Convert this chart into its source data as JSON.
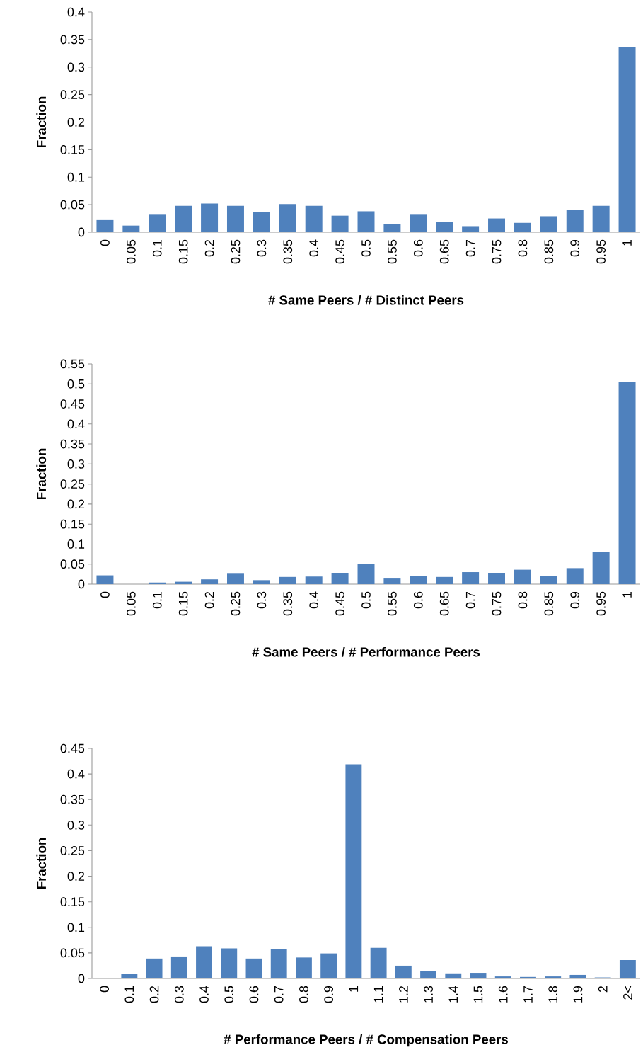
{
  "chart_data": [
    {
      "type": "bar",
      "xlabel": "# Same Peers / # Distinct Peers",
      "ylabel": "Fraction",
      "color": "#4f81bd",
      "categories": [
        "0",
        "0.05",
        "0.1",
        "0.15",
        "0.2",
        "0.25",
        "0.3",
        "0.35",
        "0.4",
        "0.45",
        "0.5",
        "0.55",
        "0.6",
        "0.65",
        "0.7",
        "0.75",
        "0.8",
        "0.85",
        "0.9",
        "0.95",
        "1"
      ],
      "values": [
        0.022,
        0.012,
        0.033,
        0.048,
        0.052,
        0.048,
        0.037,
        0.051,
        0.048,
        0.03,
        0.038,
        0.015,
        0.033,
        0.018,
        0.011,
        0.025,
        0.017,
        0.029,
        0.04,
        0.048,
        0.336
      ],
      "ylim": [
        0,
        0.4
      ],
      "yticks": [
        0,
        0.05,
        0.1,
        0.15,
        0.2,
        0.25,
        0.3,
        0.35,
        0.4
      ]
    },
    {
      "type": "bar",
      "xlabel": "# Same Peers / # Performance Peers",
      "ylabel": "Fraction",
      "color": "#4f81bd",
      "categories": [
        "0",
        "0.05",
        "0.1",
        "0.15",
        "0.2",
        "0.25",
        "0.3",
        "0.35",
        "0.4",
        "0.45",
        "0.5",
        "0.55",
        "0.6",
        "0.65",
        "0.7",
        "0.75",
        "0.8",
        "0.85",
        "0.9",
        "0.95",
        "1"
      ],
      "values": [
        0.022,
        0,
        0.004,
        0.006,
        0.012,
        0.026,
        0.01,
        0.018,
        0.019,
        0.028,
        0.05,
        0.014,
        0.02,
        0.018,
        0.03,
        0.027,
        0.036,
        0.02,
        0.04,
        0.081,
        0.506
      ],
      "ylim": [
        0,
        0.55
      ],
      "yticks": [
        0,
        0.05,
        0.1,
        0.15,
        0.2,
        0.25,
        0.3,
        0.35,
        0.4,
        0.45,
        0.5,
        0.55
      ]
    },
    {
      "type": "bar",
      "xlabel": "# Performance Peers / # Compensation Peers",
      "ylabel": "Fraction",
      "color": "#4f81bd",
      "categories": [
        "0",
        "0.1",
        "0.2",
        "0.3",
        "0.4",
        "0.5",
        "0.6",
        "0.7",
        "0.8",
        "0.9",
        "1",
        "1.1",
        "1.2",
        "1.3",
        "1.4",
        "1.5",
        "1.6",
        "1.7",
        "1.8",
        "1.9",
        "2",
        "2<"
      ],
      "values": [
        0,
        0.009,
        0.039,
        0.043,
        0.063,
        0.059,
        0.039,
        0.058,
        0.041,
        0.049,
        0.419,
        0.06,
        0.025,
        0.015,
        0.01,
        0.011,
        0.004,
        0.003,
        0.004,
        0.007,
        0.002,
        0.036
      ],
      "ylim": [
        0,
        0.45
      ],
      "yticks": [
        0,
        0.05,
        0.1,
        0.15,
        0.2,
        0.25,
        0.3,
        0.35,
        0.4,
        0.45
      ]
    }
  ]
}
